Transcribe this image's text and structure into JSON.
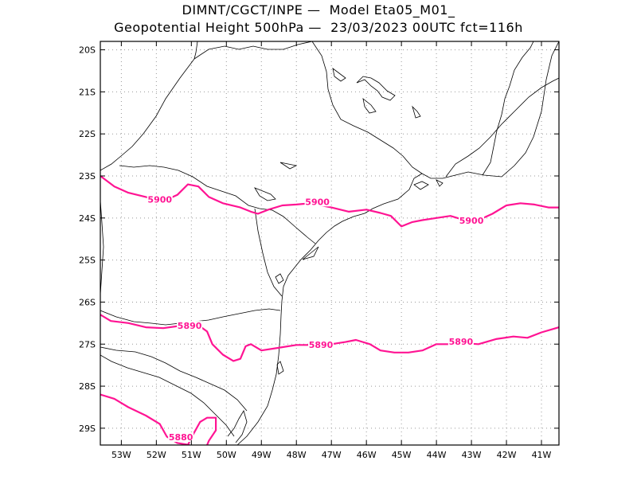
{
  "title": {
    "line1": "DIMNT/CGCT/INPE —  Model Eta05_M01_",
    "line2": "Geopotential Height 500hPa —  23/03/2023 00UTC fct=116h"
  },
  "colors": {
    "contour": "#ff1493",
    "coast": "#000000",
    "grid": "#999999"
  },
  "chart_data": {
    "type": "contour-map",
    "variable": "Geopotential Height 500hPa",
    "lon_range": [
      -53.6,
      -40.5
    ],
    "lat_range": [
      -29.4,
      -19.8
    ],
    "x_ticks": [
      {
        "lon": -53,
        "label": "53W"
      },
      {
        "lon": -52,
        "label": "52W"
      },
      {
        "lon": -51,
        "label": "51W"
      },
      {
        "lon": -50,
        "label": "50W"
      },
      {
        "lon": -49,
        "label": "49W"
      },
      {
        "lon": -48,
        "label": "48W"
      },
      {
        "lon": -47,
        "label": "47W"
      },
      {
        "lon": -46,
        "label": "46W"
      },
      {
        "lon": -45,
        "label": "45W"
      },
      {
        "lon": -44,
        "label": "44W"
      },
      {
        "lon": -43,
        "label": "43W"
      },
      {
        "lon": -42,
        "label": "42W"
      },
      {
        "lon": -41,
        "label": "41W"
      }
    ],
    "y_ticks": [
      {
        "lat": -20,
        "label": "20S"
      },
      {
        "lat": -21,
        "label": "21S"
      },
      {
        "lat": -22,
        "label": "22S"
      },
      {
        "lat": -23,
        "label": "23S"
      },
      {
        "lat": -24,
        "label": "24S"
      },
      {
        "lat": -25,
        "label": "25S"
      },
      {
        "lat": -26,
        "label": "26S"
      },
      {
        "lat": -27,
        "label": "27S"
      },
      {
        "lat": -28,
        "label": "28S"
      },
      {
        "lat": -29,
        "label": "29S"
      }
    ],
    "contours": [
      {
        "level": 5900,
        "points": [
          [
            -53.6,
            -23.0
          ],
          [
            -53.2,
            -23.25
          ],
          [
            -52.8,
            -23.4
          ],
          [
            -52.3,
            -23.5
          ],
          [
            -51.8,
            -23.6
          ],
          [
            -51.4,
            -23.45
          ],
          [
            -51.1,
            -23.2
          ],
          [
            -50.8,
            -23.25
          ],
          [
            -50.5,
            -23.5
          ],
          [
            -50.1,
            -23.65
          ],
          [
            -49.6,
            -23.75
          ],
          [
            -49.3,
            -23.85
          ],
          [
            -49.1,
            -23.9
          ],
          [
            -48.8,
            -23.8
          ],
          [
            -48.4,
            -23.7
          ],
          [
            -48.0,
            -23.68
          ],
          [
            -47.6,
            -23.65
          ],
          [
            -47.0,
            -23.75
          ],
          [
            -46.5,
            -23.85
          ],
          [
            -46.0,
            -23.8
          ],
          [
            -45.6,
            -23.88
          ],
          [
            -45.3,
            -23.95
          ],
          [
            -45.0,
            -24.2
          ],
          [
            -44.7,
            -24.1
          ],
          [
            -44.4,
            -24.05
          ],
          [
            -44.0,
            -24.0
          ],
          [
            -43.6,
            -23.95
          ],
          [
            -43.2,
            -24.05
          ],
          [
            -42.8,
            -24.05
          ],
          [
            -42.4,
            -23.9
          ],
          [
            -42.0,
            -23.7
          ],
          [
            -41.6,
            -23.65
          ],
          [
            -41.2,
            -23.68
          ],
          [
            -40.8,
            -23.75
          ],
          [
            -40.5,
            -23.75
          ]
        ],
        "labels": [
          {
            "text": "5900",
            "lon": -51.9,
            "lat": -23.6
          },
          {
            "text": "5900",
            "lon": -47.4,
            "lat": -23.65
          },
          {
            "text": "5900",
            "lon": -43.0,
            "lat": -24.1
          }
        ]
      },
      {
        "level": 5890,
        "points": [
          [
            -53.6,
            -26.3
          ],
          [
            -53.3,
            -26.45
          ],
          [
            -52.8,
            -26.5
          ],
          [
            -52.3,
            -26.6
          ],
          [
            -51.8,
            -26.62
          ],
          [
            -51.2,
            -26.55
          ],
          [
            -50.8,
            -26.55
          ],
          [
            -50.55,
            -26.7
          ],
          [
            -50.4,
            -27.0
          ],
          [
            -50.1,
            -27.25
          ],
          [
            -49.8,
            -27.4
          ],
          [
            -49.6,
            -27.35
          ],
          [
            -49.45,
            -27.05
          ],
          [
            -49.3,
            -27.0
          ],
          [
            -49.0,
            -27.15
          ],
          [
            -48.6,
            -27.1
          ],
          [
            -48.0,
            -27.02
          ],
          [
            -47.4,
            -27.02
          ],
          [
            -47.0,
            -27.0
          ],
          [
            -46.6,
            -26.95
          ],
          [
            -46.3,
            -26.9
          ],
          [
            -45.9,
            -27.0
          ],
          [
            -45.6,
            -27.15
          ],
          [
            -45.2,
            -27.2
          ],
          [
            -44.8,
            -27.2
          ],
          [
            -44.4,
            -27.15
          ],
          [
            -44.0,
            -27.0
          ],
          [
            -43.6,
            -27.0
          ],
          [
            -43.2,
            -26.98
          ],
          [
            -42.8,
            -27.0
          ],
          [
            -42.3,
            -26.88
          ],
          [
            -41.8,
            -26.82
          ],
          [
            -41.4,
            -26.85
          ],
          [
            -41.0,
            -26.72
          ],
          [
            -40.5,
            -26.6
          ]
        ],
        "labels": [
          {
            "text": "5890",
            "lon": -51.05,
            "lat": -26.6
          },
          {
            "text": "5890",
            "lon": -47.3,
            "lat": -27.05
          },
          {
            "text": "5890",
            "lon": -43.3,
            "lat": -26.98
          }
        ]
      },
      {
        "level": 5880,
        "points": [
          [
            -53.6,
            -28.2
          ],
          [
            -53.2,
            -28.3
          ],
          [
            -52.8,
            -28.5
          ],
          [
            -52.3,
            -28.7
          ],
          [
            -51.9,
            -28.9
          ],
          [
            -51.7,
            -29.2
          ],
          [
            -51.4,
            -29.35
          ],
          [
            -51.05,
            -29.4
          ]
        ],
        "labels": [
          {
            "text": "5880",
            "lon": -51.3,
            "lat": -29.25
          }
        ]
      },
      {
        "level": 5880,
        "points": [
          [
            -51.1,
            -29.4
          ],
          [
            -50.95,
            -29.15
          ],
          [
            -50.75,
            -28.85
          ],
          [
            -50.55,
            -28.75
          ],
          [
            -50.3,
            -28.75
          ],
          [
            -50.3,
            -29.05
          ],
          [
            -50.5,
            -29.3
          ],
          [
            -50.55,
            -29.4
          ]
        ],
        "labels": []
      }
    ]
  }
}
